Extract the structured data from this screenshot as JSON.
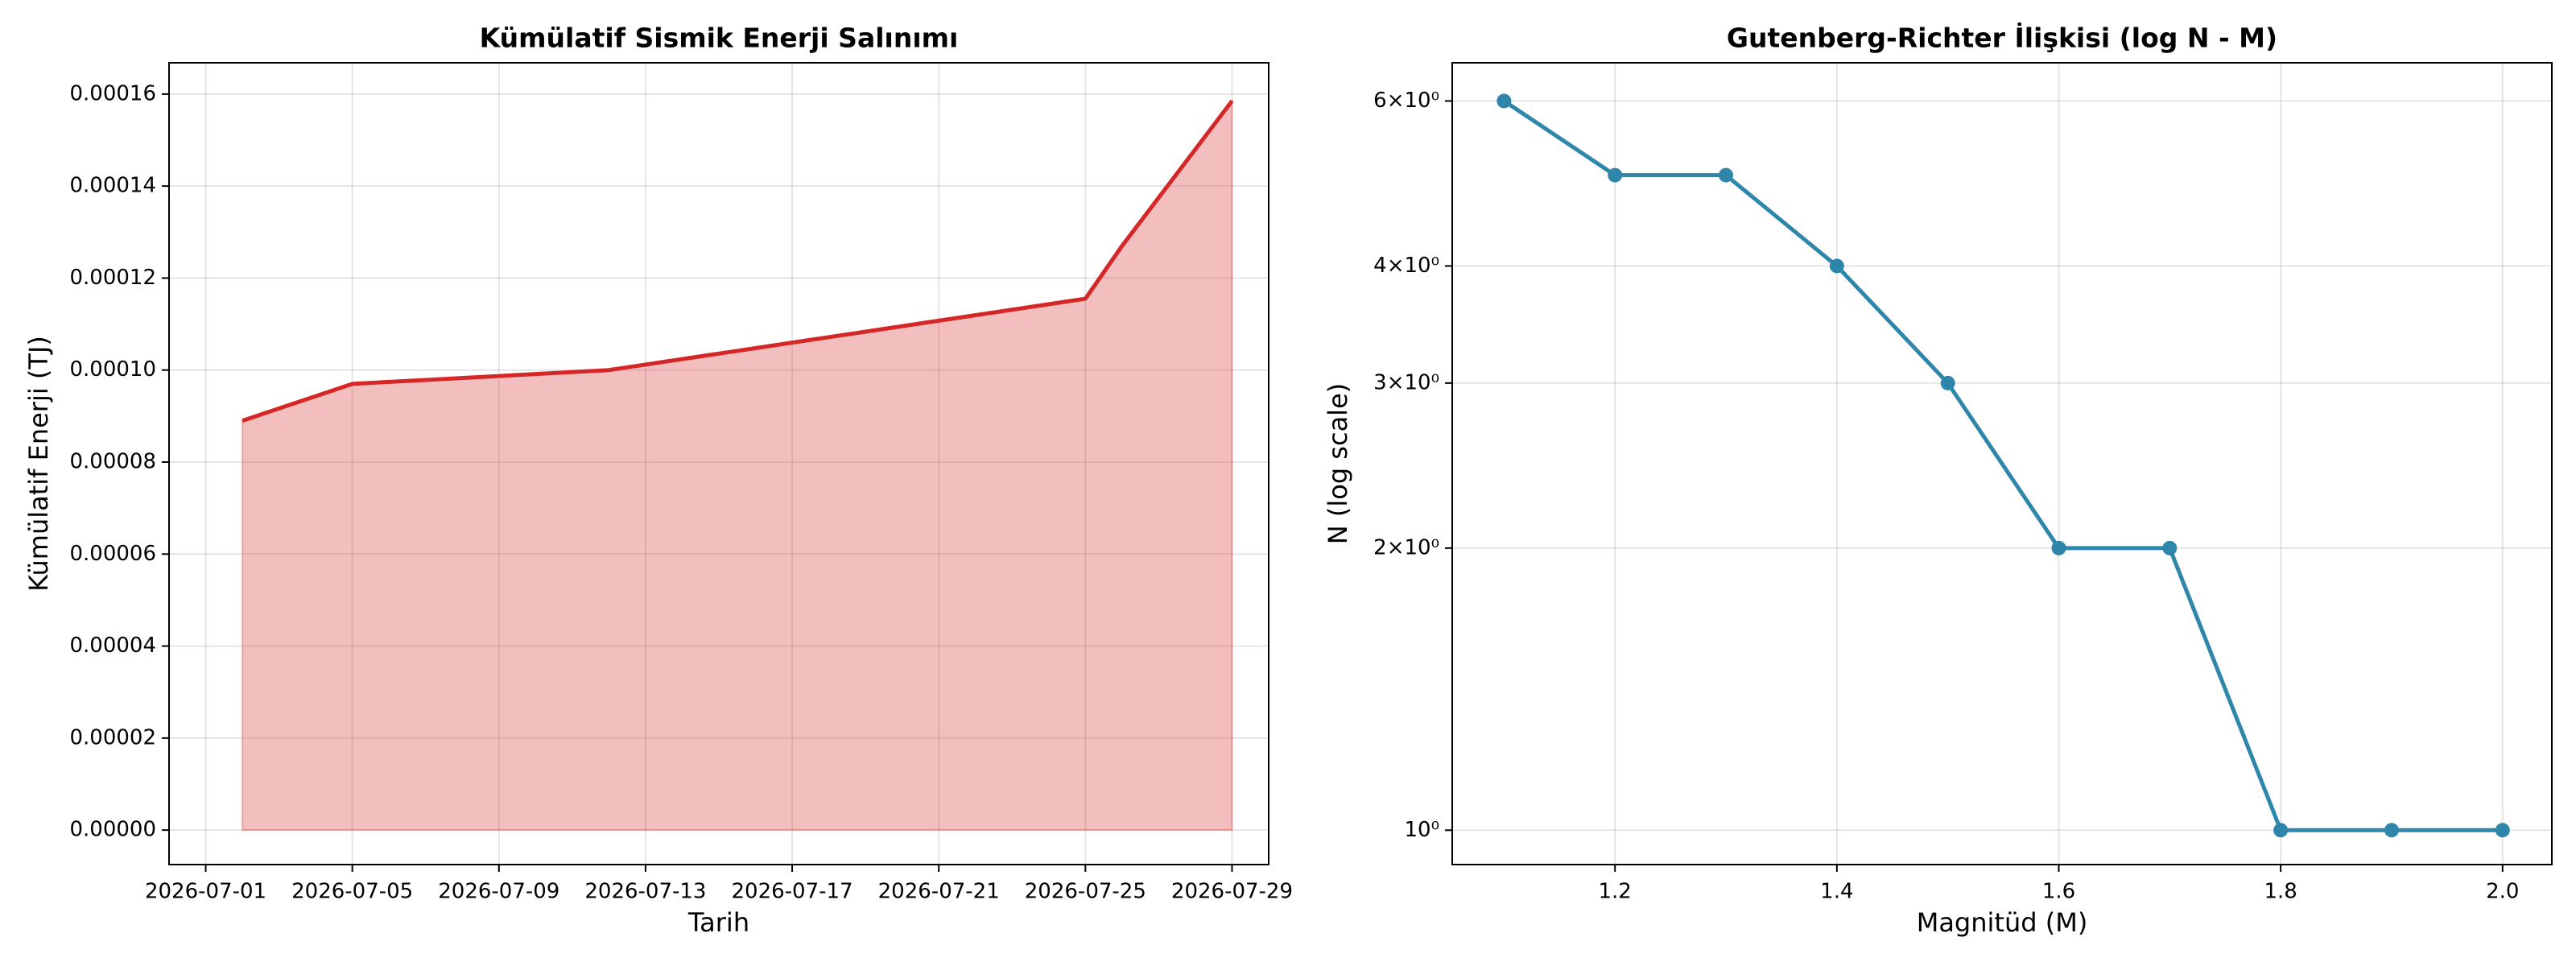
{
  "chart_data": [
    {
      "type": "area",
      "title": "Kümülatif Sismik Enerji Salınımı",
      "xlabel": "Tarih",
      "ylabel": "Kümülatif Enerji (TJ)",
      "x": [
        "2026-07-02",
        "2026-07-05",
        "2026-07-12",
        "2026-07-25",
        "2026-07-26",
        "2026-07-29"
      ],
      "values": [
        8.9e-05,
        9.7e-05,
        0.0001,
        0.0001155,
        0.000127,
        0.0001585
      ],
      "color": "#d62728",
      "fill_alpha": 0.3,
      "xlim": [
        "2026-06-30",
        "2026-07-30"
      ],
      "xticks": [
        "2026-07-01",
        "2026-07-05",
        "2026-07-09",
        "2026-07-13",
        "2026-07-17",
        "2026-07-21",
        "2026-07-25",
        "2026-07-29"
      ],
      "ylim": [
        -7.5e-06,
        0.0001668
      ],
      "yticks": [
        {
          "value": 0,
          "label": "0.00000"
        },
        {
          "value": 2e-05,
          "label": "0.00002"
        },
        {
          "value": 4e-05,
          "label": "0.00004"
        },
        {
          "value": 6e-05,
          "label": "0.00006"
        },
        {
          "value": 8e-05,
          "label": "0.00008"
        },
        {
          "value": 0.0001,
          "label": "0.00010"
        },
        {
          "value": 0.00012,
          "label": "0.00012"
        },
        {
          "value": 0.00014,
          "label": "0.00014"
        },
        {
          "value": 0.00016,
          "label": "0.00016"
        }
      ],
      "grid": true
    },
    {
      "type": "line",
      "title": "Gutenberg-Richter İlişkisi (log N - M)",
      "xlabel": "Magnitüd (M)",
      "ylabel": "N (log scale)",
      "x": [
        1.1,
        1.2,
        1.3,
        1.4,
        1.5,
        1.6,
        1.7,
        1.8,
        1.9,
        2.0
      ],
      "values": [
        6,
        5,
        5,
        4,
        3,
        2,
        2,
        1,
        1,
        1
      ],
      "color": "#2e86ab",
      "marker": true,
      "log_y": true,
      "xlim": [
        1.0533,
        2.0444
      ],
      "xticks": [
        {
          "value": 1.2,
          "label": "1.2"
        },
        {
          "value": 1.4,
          "label": "1.4"
        },
        {
          "value": 1.6,
          "label": "1.6"
        },
        {
          "value": 1.8,
          "label": "1.8"
        },
        {
          "value": 2.0,
          "label": "2.0"
        }
      ],
      "ylim": [
        0.919,
        6.59
      ],
      "yticks": [
        {
          "value": 1,
          "label": "10⁰"
        },
        {
          "value": 2,
          "label": "2×10⁰"
        },
        {
          "value": 3,
          "label": "3×10⁰"
        },
        {
          "value": 4,
          "label": "4×10⁰"
        },
        {
          "value": 6,
          "label": "6×10⁰"
        }
      ],
      "grid": true
    }
  ]
}
